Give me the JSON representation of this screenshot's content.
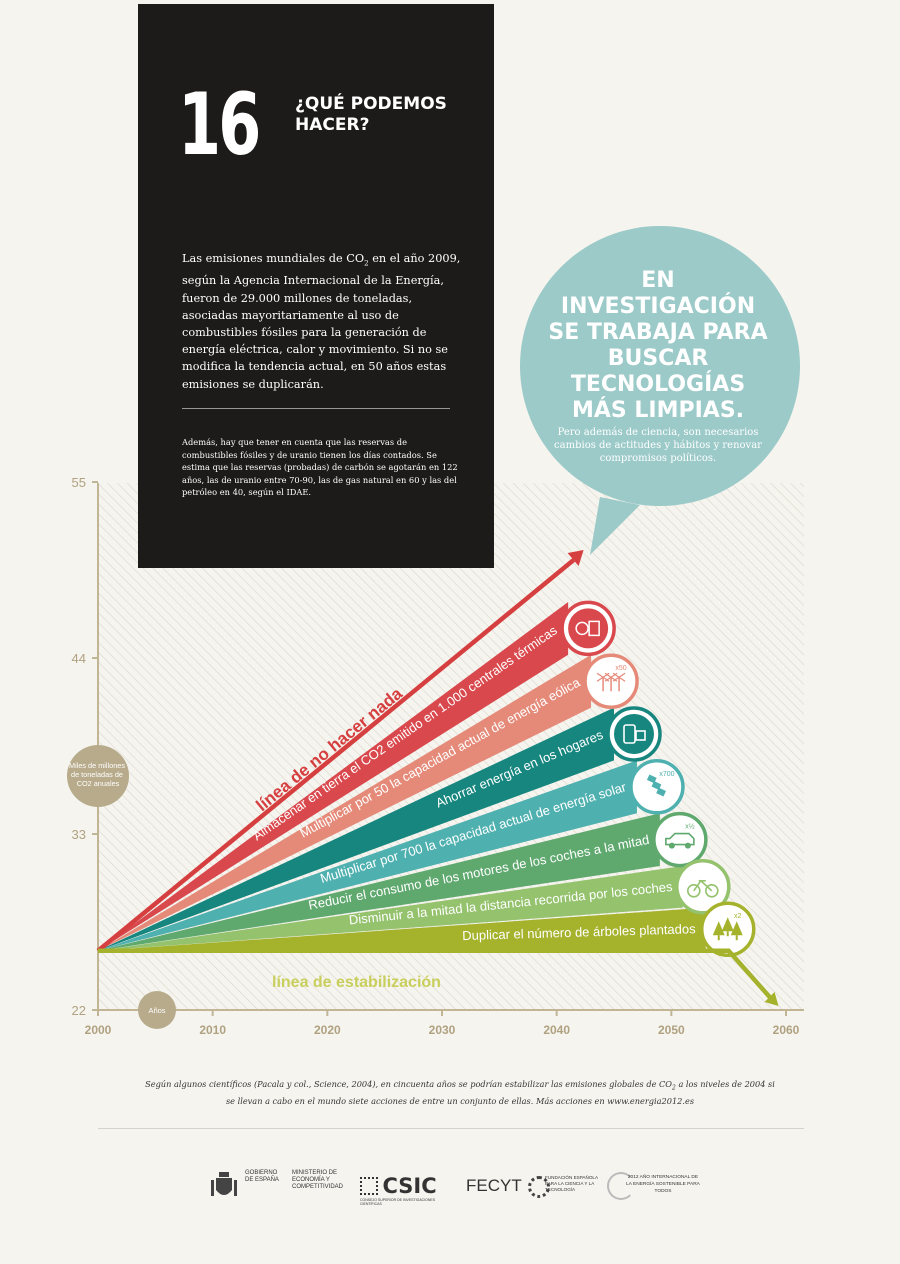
{
  "header": {
    "number": "16",
    "title": "¿QUÉ PODEMOS HACER?"
  },
  "intro": {
    "pre": "Las emisiones mundiales de CO",
    "sub": "2",
    "post": " en el año 2009, según la Agencia Internacional de la Energía, fueron de 29.000 millones de toneladas, asociadas mayoritariamente al uso de combustibles fósiles para la generación de energía eléctrica, calor y movimiento. Si no se modifica la tendencia actual, en 50 años estas emisiones se duplicarán."
  },
  "note": "Además, hay que tener en cuenta que las reservas de combustibles fósiles y de uranio tienen los días contados. Se estima que las reservas (probadas) de carbón se agotarán en 122 años, las de uranio entre 70-90, las de gas natural en 60 y las del petróleo en 40, según el IDAE.",
  "bubble": {
    "heading": "EN INVESTIGACIÓN SE TRABAJA PARA BUSCAR TECNOLOGÍAS MÁS LIMPIAS.",
    "subtext": "Pero además de ciencia, son necesarios cambios de actitudes y hábitos y renovar compromisos políticos."
  },
  "chart_data": {
    "type": "area",
    "ylabel": "Miles de millones de toneladas de CO2 anuales",
    "xlabel": "Años",
    "x_ticks": [
      2000,
      2010,
      2020,
      2030,
      2040,
      2050,
      2060
    ],
    "y_ticks": [
      22,
      33,
      44,
      55
    ],
    "xlim": [
      2000,
      2060
    ],
    "ylim": [
      22,
      56
    ],
    "start": {
      "x": 2000,
      "y": 25.7
    },
    "no_action_line": {
      "label": "línea de no hacer nada",
      "end": {
        "x": 2042,
        "y": 50.5
      },
      "color": "#d63f3f"
    },
    "stabilization_line": {
      "label": "línea de estabilización",
      "y": 25.7,
      "end_x": 2055,
      "drop_end": {
        "x": 2059,
        "y": 22.5
      },
      "color": "#a5b22c"
    },
    "wedges": [
      {
        "label": "Almacenar en tierra el CO2 emitido en 1.000 centrales térmicas",
        "top": 47.5,
        "bottom": 44.2,
        "end_x": 2041,
        "color": "#d9484c",
        "icon": "power-plant-co2-icon"
      },
      {
        "label": "Multiplicar por 50 la capacidad actual de energía eólica",
        "top": 44.2,
        "bottom": 40.9,
        "end_x": 2043,
        "color": "#e58a79",
        "icon": "wind-turbines-icon",
        "icon_text": "x50"
      },
      {
        "label": "Ahorrar energía en los hogares",
        "top": 40.9,
        "bottom": 37.6,
        "end_x": 2045,
        "color": "#16867f",
        "icon": "appliances-icon"
      },
      {
        "label": "Multiplicar por 700 la capacidad actual de energía solar",
        "top": 37.6,
        "bottom": 34.3,
        "end_x": 2047,
        "color": "#4fb0b0",
        "icon": "solar-panels-icon",
        "icon_text": "x700"
      },
      {
        "label": "Reducir el consumo de los motores de los coches a la mitad",
        "top": 34.3,
        "bottom": 31.0,
        "end_x": 2049,
        "color": "#5fa96f",
        "icon": "car-icon",
        "icon_text": "x½"
      },
      {
        "label": "Disminuir a la mitad la distancia recorrida por los coches",
        "top": 31.0,
        "bottom": 28.4,
        "end_x": 2051,
        "color": "#94c26d",
        "icon": "bicycle-icon"
      },
      {
        "label": "Duplicar el número de árboles plantados",
        "top": 28.4,
        "bottom": 25.7,
        "end_x": 2053,
        "color": "#a5b22c",
        "icon": "trees-icon",
        "icon_text": "x2"
      }
    ]
  },
  "caption": {
    "pre": "Según algunos científicos (Pacala y col., Science, 2004), en cincuenta años se podrían estabilizar las emisiones globales de CO",
    "sub": "2",
    "post": " a los niveles de 2004 si se llevan a cabo en el mundo siete acciones de entre un conjunto de ellas. Más acciones en www.energia2012.es"
  },
  "footer": {
    "gobierno": "GOBIERNO DE ESPAÑA",
    "ministerio": "MINISTERIO DE ECONOMÍA Y COMPETITIVIDAD",
    "csic": "CSIC",
    "csic_sub": "CONSEJO SUPERIOR DE INVESTIGACIONES CIENTÍFICAS",
    "fecyt": "FECYT",
    "fecyt_sub": "FUNDACIÓN ESPAÑOLA PARA LA CIENCIA Y LA TECNOLOGÍA",
    "year_logo": "2012 AÑO INTERNACIONAL DE LA ENERGÍA SOSTENIBLE PARA TODOS"
  },
  "colors": {
    "axis": "#c2b596",
    "tick_text": "#b0a180",
    "bubble": "#9bcac8",
    "black": "#1d1b1a"
  }
}
